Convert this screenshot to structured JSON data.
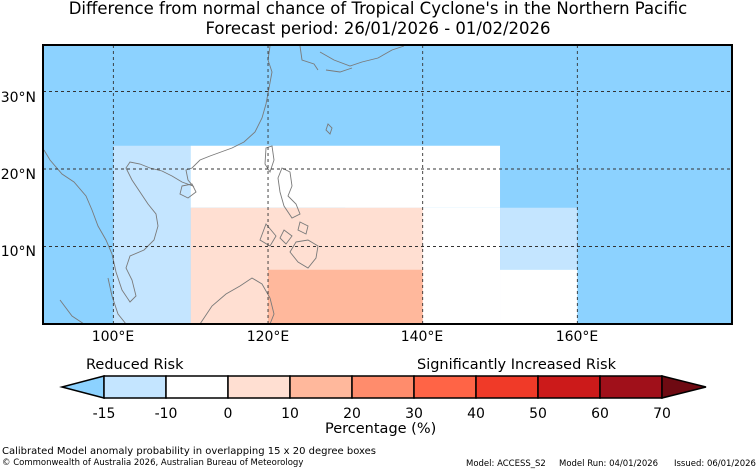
{
  "title_line1": "Difference from normal chance of Tropical Cyclone's in the Northern Pacific",
  "title_line2": "Forecast period: 26/01/2026 - 01/02/2026",
  "lat_labels": [
    "30°N",
    "20°N",
    "10°N"
  ],
  "lon_labels": [
    "100°E",
    "120°E",
    "140°E",
    "160°E"
  ],
  "legend": {
    "reduced_label": "Reduced Risk",
    "increased_label": "Significantly Increased Risk",
    "ticks": [
      "-15",
      "-10",
      "0",
      "10",
      "20",
      "30",
      "40",
      "50",
      "60",
      "70"
    ],
    "xlabel": "Percentage (%)",
    "colors": [
      "#8cd2ff",
      "#c4e5ff",
      "#ffffff",
      "#ffdfd2",
      "#ffb89c",
      "#ff8c6c",
      "#ff6446",
      "#f03a28",
      "#cc1a1a",
      "#a0101a",
      "#6e0a12"
    ]
  },
  "anomaly_boxes": [
    {
      "lon": [
        100,
        110
      ],
      "lat": [
        0,
        23
      ],
      "category": "-15 to -10",
      "color": "#c4e5ff"
    },
    {
      "lon": [
        110,
        150
      ],
      "lat": [
        15,
        23
      ],
      "category": "-10 to 0",
      "color": "#ffffff"
    },
    {
      "lon": [
        130,
        150
      ],
      "lat": [
        0,
        15
      ],
      "category": "-10 to 0",
      "color": "#ffffff"
    },
    {
      "lon": [
        110,
        140
      ],
      "lat": [
        0,
        15
      ],
      "category": "0 to 10",
      "color": "#ffdfd2"
    },
    {
      "lon": [
        120,
        140
      ],
      "lat": [
        0,
        7
      ],
      "category": "10 to 20",
      "color": "#ffb89c"
    },
    {
      "lon": [
        150,
        160
      ],
      "lat": [
        7,
        15
      ],
      "category": "-15 to -10",
      "color": "#c4e5ff"
    },
    {
      "lon": [
        150,
        160
      ],
      "lat": [
        0,
        7
      ],
      "category": "-10 to 0",
      "color": "#ffffff"
    }
  ],
  "background_color": "#8cd2ff",
  "footer_line1": "Calibrated Model anomaly probability in overlapping 15 x 20 degree boxes",
  "footer_line2": "© Commonwealth of Australia 2026, Australian Bureau of Meteorology",
  "model": "Model: ACCESS_S2",
  "model_run": "Model Run: 04/01/2026",
  "issued": "Issued: 06/01/2026"
}
